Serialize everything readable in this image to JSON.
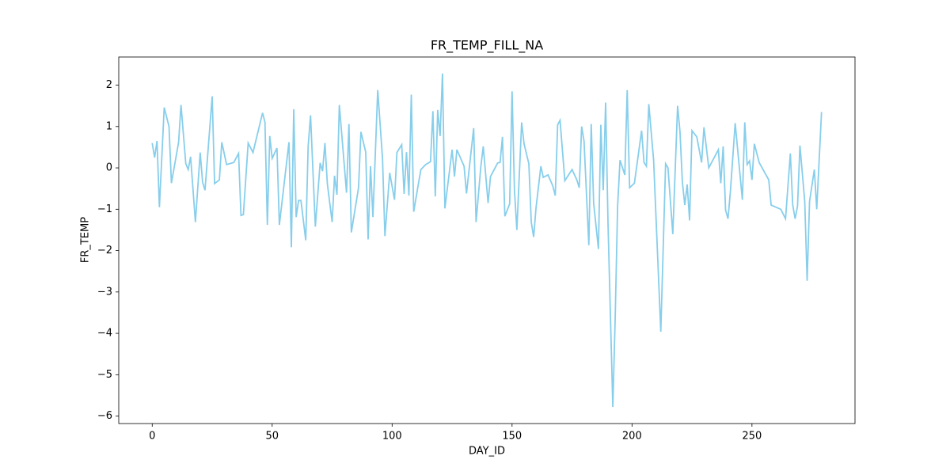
{
  "chart_data": {
    "type": "line",
    "title": "FR_TEMP_FILL_NA",
    "x_label": "DAY_ID",
    "y_label": "FR_TEMP",
    "color": "#87ceeb",
    "x": [
      0,
      1,
      2,
      3,
      5,
      7,
      8,
      11,
      12,
      14,
      15,
      16,
      18,
      20,
      21,
      22,
      25,
      26,
      28,
      29,
      31,
      34,
      36,
      37,
      38,
      40,
      42,
      46,
      47,
      48,
      49,
      50,
      52,
      53,
      57,
      58,
      59,
      60,
      61,
      62,
      64,
      65,
      66,
      68,
      70,
      71,
      72,
      73,
      75,
      76,
      77,
      78,
      81,
      82,
      83,
      86,
      87,
      89,
      90,
      91,
      92,
      94,
      96,
      97,
      99,
      101,
      102,
      104,
      105,
      106,
      107,
      108,
      109,
      111,
      112,
      114,
      116,
      117,
      118,
      119,
      120,
      121,
      122,
      125,
      126,
      127,
      130,
      131,
      134,
      135,
      137,
      138,
      140,
      141,
      144,
      145,
      146,
      147,
      149,
      150,
      151,
      152,
      154,
      155,
      157,
      158,
      159,
      160,
      162,
      163,
      165,
      167,
      168,
      169,
      170,
      172,
      175,
      177,
      178,
      179,
      180,
      182,
      183,
      184,
      186,
      187,
      188,
      189,
      190,
      192,
      193,
      194,
      195,
      197,
      198,
      199,
      201,
      204,
      205,
      206,
      207,
      209,
      212,
      214,
      215,
      217,
      219,
      220,
      221,
      222,
      223,
      224,
      225,
      227,
      229,
      230,
      232,
      236,
      237,
      238,
      239,
      240,
      241,
      243,
      246,
      247,
      248,
      249,
      250,
      251,
      253,
      257,
      258,
      262,
      264,
      266,
      267,
      268,
      269,
      270,
      272,
      273,
      274,
      276,
      277,
      279
    ],
    "values": [
      0.6,
      0.25,
      0.65,
      -0.95,
      1.46,
      1.0,
      -0.37,
      0.62,
      1.52,
      0.1,
      -0.04,
      0.27,
      -1.31,
      0.37,
      -0.35,
      -0.54,
      1.73,
      -0.38,
      -0.29,
      0.62,
      0.08,
      0.13,
      0.35,
      -1.15,
      -1.13,
      0.6,
      0.37,
      1.33,
      1.1,
      -1.38,
      0.77,
      0.23,
      0.48,
      -1.38,
      0.62,
      -1.92,
      1.42,
      -1.19,
      -0.79,
      -0.79,
      -1.75,
      0.52,
      1.27,
      -1.42,
      0.12,
      -0.08,
      0.6,
      -0.38,
      -1.31,
      -0.19,
      -0.65,
      1.52,
      -0.6,
      1.06,
      -1.56,
      -0.48,
      0.87,
      0.38,
      -1.73,
      0.04,
      -1.19,
      1.88,
      0.23,
      -1.65,
      -0.12,
      -0.77,
      0.37,
      0.56,
      -0.63,
      0.38,
      -0.67,
      1.77,
      -1.06,
      -0.37,
      -0.04,
      0.08,
      0.15,
      1.37,
      -0.69,
      1.4,
      0.77,
      2.28,
      -0.98,
      0.44,
      -0.21,
      0.44,
      0.04,
      -0.62,
      0.96,
      -1.31,
      0.04,
      0.52,
      -0.85,
      -0.21,
      0.12,
      0.13,
      0.75,
      -1.17,
      -0.87,
      1.85,
      -0.54,
      -1.5,
      1.1,
      0.58,
      0.1,
      -1.31,
      -1.67,
      -0.96,
      0.04,
      -0.23,
      -0.17,
      -0.44,
      -0.67,
      1.04,
      1.15,
      -0.31,
      -0.04,
      -0.29,
      -0.48,
      1.0,
      0.65,
      -1.87,
      1.06,
      -0.85,
      -1.96,
      1.04,
      -0.54,
      1.58,
      -1.35,
      -5.78,
      -3.6,
      -0.92,
      0.19,
      -0.17,
      1.88,
      -0.48,
      -0.37,
      0.9,
      0.13,
      0.04,
      1.54,
      0.19,
      -3.96,
      0.1,
      0,
      -1.6,
      1.5,
      0.87,
      -0.35,
      -0.9,
      -0.4,
      -1.27,
      0.9,
      0.75,
      0.13,
      0.98,
      0,
      0.44,
      -0.37,
      0.52,
      -1.02,
      -1.23,
      -0.58,
      1.08,
      -0.77,
      1.1,
      0.08,
      0.17,
      -0.29,
      0.58,
      0.13,
      -0.29,
      -0.9,
      -1.0,
      -1.23,
      0.35,
      -0.9,
      -1.23,
      -0.92,
      0.54,
      -0.81,
      -2.73,
      -0.81,
      -0.04,
      -1.0,
      1.35
    ],
    "xlim": [
      -13.95,
      292.95
    ],
    "ylim": [
      -6.18,
      2.68
    ],
    "xticks": [
      0,
      50,
      100,
      150,
      200,
      250
    ],
    "yticks": [
      {
        "value": -6,
        "label": "−6"
      },
      {
        "value": -5,
        "label": "−5"
      },
      {
        "value": -4,
        "label": "−4"
      },
      {
        "value": -3,
        "label": "−3"
      },
      {
        "value": -2,
        "label": "−2"
      },
      {
        "value": -1,
        "label": "−1"
      },
      0,
      1,
      2
    ]
  }
}
